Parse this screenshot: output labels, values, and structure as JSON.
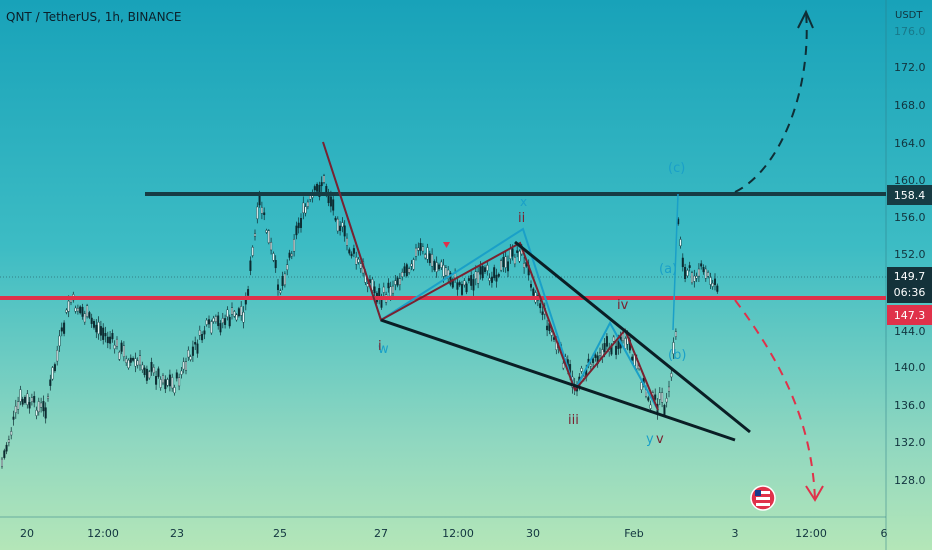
{
  "header": {
    "title": "QNT / TetherUS, 1h, BINANCE"
  },
  "axis": {
    "unit": "USDT"
  },
  "chart_data": {
    "type": "candlestick",
    "symbol": "QNT / TetherUS",
    "interval": "1h",
    "exchange": "BINANCE",
    "ylim": [
      124,
      178
    ],
    "y_ticks": [
      "128.0",
      "132.0",
      "136.0",
      "140.0",
      "144.0",
      "148.0",
      "152.0",
      "156.0",
      "160.0",
      "164.0",
      "168.0",
      "172.0",
      "176.0"
    ],
    "x_ticks": [
      "20",
      "12:00",
      "23",
      "25",
      "27",
      "12:00",
      "30",
      "Feb",
      "3",
      "12:00",
      "6"
    ],
    "levels": [
      {
        "name": "resistance",
        "price": 158.4,
        "color": "#163c44"
      },
      {
        "name": "support",
        "price": 147.3,
        "color": "#e0314a"
      }
    ],
    "current_price": {
      "price": "149.7",
      "countdown": "06:36"
    },
    "price_labels": [
      {
        "text": "158.4",
        "bg": "#163c44",
        "color": "#ffffff"
      },
      {
        "text": "147.3",
        "bg": "#e0314a",
        "color": "#ffffff"
      }
    ],
    "wave_labels": [
      "ii",
      "x",
      "iv",
      "iii",
      "w",
      "y",
      "v",
      "i",
      "(a)",
      "(b)",
      "(c)"
    ],
    "projections": [
      {
        "name": "bullish",
        "from": 158.4,
        "to": 177.5,
        "style": "dashed",
        "color": "#0f2e36"
      },
      {
        "name": "bearish",
        "from": 147.3,
        "to": 125.5,
        "style": "dashed",
        "color": "#e0314a"
      }
    ],
    "colors": {
      "wave_dark": "#7a2230",
      "wave_light": "#1aa0c8",
      "wedge": "#0a1e25"
    }
  }
}
